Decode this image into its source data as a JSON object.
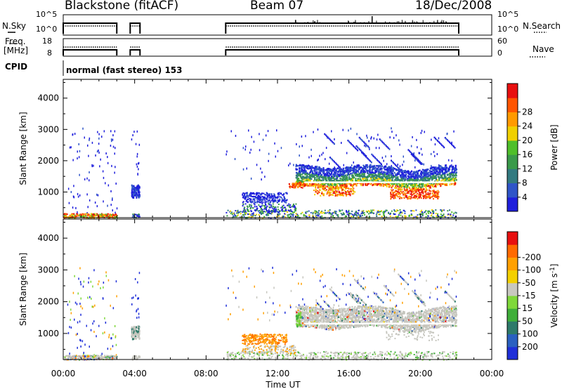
{
  "header": {
    "station": "Blackstone (fitACF)",
    "beam": "Beam 07",
    "date": "18/Dec/2008"
  },
  "strip": {
    "nsky_label": "N.Sky",
    "nsearch_label": "N.Search",
    "freq_label_1": "Freq.",
    "freq_label_2": "[MHz]",
    "nave_label": "Nave",
    "cpid_label": "CPID",
    "noise_ticks_left": [
      "10^5",
      "10^0"
    ],
    "noise_ticks_right": [
      "10^5",
      "10^0"
    ],
    "freq_ticks": [
      "18",
      "8"
    ],
    "nave_ticks": [
      "60",
      "0"
    ],
    "cpid_text": "normal (fast stereo) 153"
  },
  "axes": {
    "ylabel": "Slant Range [km]",
    "xlabel": "Time UT",
    "yticks": [
      1000,
      2000,
      3000,
      4000
    ],
    "xticks": [
      "00:00",
      "04:00",
      "08:00",
      "12:00",
      "16:00",
      "20:00",
      "00:00"
    ],
    "xlim_hours": [
      0,
      24
    ],
    "ylim_km": [
      180,
      4600
    ]
  },
  "power_scale": {
    "label": "Power [dB]",
    "ticks": [
      "4",
      "8",
      "12",
      "16",
      "20",
      "24",
      "28"
    ],
    "colors": [
      "#1f1fdc",
      "#2f55c8",
      "#327a80",
      "#3a9a4a",
      "#4fbf2a",
      "#f0d000",
      "#ff9a00",
      "#ff5500",
      "#e81010"
    ]
  },
  "velocity_scale": {
    "label": "Velocity [m s",
    "label_sup": "-1",
    "label_end": "]",
    "ticks": [
      "200",
      "100",
      "50",
      "15",
      "-15",
      "-50",
      "-100",
      "-200"
    ],
    "colors": [
      "#1f2fd8",
      "#2a60c0",
      "#2e7a6a",
      "#3fae3a",
      "#7fd83a",
      "#c8c8c0",
      "#f3d000",
      "#ffa000",
      "#ff6a00",
      "#e81010"
    ]
  },
  "chart_data": [
    {
      "type": "heatmap",
      "title": "Power",
      "xlabel": "Time UT",
      "ylabel": "Slant Range [km]",
      "quantity": "Power [dB]",
      "xlim": [
        "00:00",
        "24:00"
      ],
      "ylim": [
        180,
        4600
      ],
      "data_gaps_UT": [
        [
          "03:00",
          "03:45"
        ],
        [
          "04:20",
          "09:05"
        ],
        [
          "22:10",
          "24:00"
        ]
      ],
      "features": [
        {
          "time": [
            "00:00",
            "03:00"
          ],
          "range_km": [
            180,
            300
          ],
          "power_dB": [
            16,
            28
          ]
        },
        {
          "time": [
            "00:00",
            "03:00"
          ],
          "range_km": [
            300,
            3000
          ],
          "power_dB": [
            4,
            8
          ]
        },
        {
          "time": [
            "03:50",
            "04:15"
          ],
          "range_km": [
            900,
            1200
          ],
          "power_dB": [
            4,
            10
          ]
        },
        {
          "time": [
            "09:05",
            "13:00"
          ],
          "range_km": [
            180,
            400
          ],
          "power_dB": [
            8,
            20
          ]
        },
        {
          "time": [
            "10:00",
            "12:30"
          ],
          "range_km": [
            700,
            1000
          ],
          "power_dB": [
            4,
            10
          ]
        },
        {
          "time": [
            "13:00",
            "22:00"
          ],
          "range_km": [
            1200,
            1900
          ],
          "power_dB": [
            4,
            16
          ]
        },
        {
          "time": [
            "13:30",
            "21:30"
          ],
          "range_km": [
            800,
            1300
          ],
          "power_dB": [
            16,
            30
          ]
        },
        {
          "time": [
            "14:00",
            "21:30"
          ],
          "range_km": [
            2000,
            3000
          ],
          "power_dB": [
            4,
            8
          ]
        }
      ]
    },
    {
      "type": "heatmap",
      "title": "Velocity",
      "xlabel": "Time UT",
      "ylabel": "Slant Range [km]",
      "quantity": "Velocity [m s-1]",
      "xlim": [
        "00:00",
        "24:00"
      ],
      "ylim": [
        180,
        4600
      ],
      "features": [
        {
          "time": [
            "00:00",
            "03:00"
          ],
          "range_km": [
            180,
            350
          ],
          "velocity_ms": [
            -15,
            15
          ]
        },
        {
          "time": [
            "10:00",
            "12:30"
          ],
          "range_km": [
            700,
            1000
          ],
          "velocity_ms": [
            -100,
            -50
          ]
        },
        {
          "time": [
            "13:00",
            "22:00"
          ],
          "range_km": [
            800,
            1900
          ],
          "velocity_ms": [
            -15,
            15
          ]
        },
        {
          "time": [
            "13:00",
            "13:20"
          ],
          "range_km": [
            1200,
            1700
          ],
          "velocity_ms": [
            50,
            100
          ]
        }
      ]
    }
  ]
}
